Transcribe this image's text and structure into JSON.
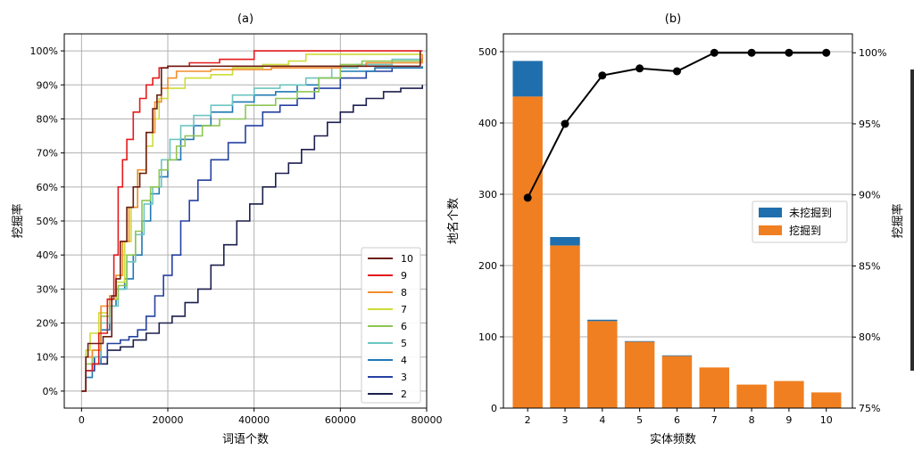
{
  "chart_data": [
    {
      "type": "line",
      "title": "(a)",
      "xlabel": "词语个数",
      "ylabel": "挖掘率",
      "xlim": [
        -4000,
        80000
      ],
      "ylim": [
        -0.05,
        1.05
      ],
      "xticks": [
        0,
        20000,
        40000,
        60000,
        80000
      ],
      "xtick_labels": [
        "0",
        "20000",
        "40000",
        "60000",
        "80000"
      ],
      "yticks": [
        0,
        0.1,
        0.2,
        0.3,
        0.4,
        0.5,
        0.6,
        0.7,
        0.8,
        0.9,
        1.0
      ],
      "ytick_labels": [
        "0%",
        "10%",
        "20%",
        "30%",
        "40%",
        "50%",
        "60%",
        "70%",
        "80%",
        "90%",
        "100%"
      ],
      "grid": true,
      "legend_position": "lower-right",
      "series": [
        {
          "name": "10",
          "color": "#6b1d14",
          "x": [
            0,
            1000,
            1500,
            3000,
            5000,
            7000,
            8000,
            9000,
            10500,
            12000,
            13500,
            15000,
            16500,
            17500,
            18500,
            20000,
            40000,
            60000,
            78000,
            78500
          ],
          "y": [
            0,
            0.1,
            0.14,
            0.14,
            0.16,
            0.28,
            0.33,
            0.44,
            0.54,
            0.6,
            0.64,
            0.76,
            0.83,
            0.87,
            0.95,
            0.955,
            0.955,
            0.955,
            0.955,
            1.0
          ]
        },
        {
          "name": "9",
          "color": "#e41a1c",
          "x": [
            0,
            1000,
            2500,
            4000,
            6000,
            7500,
            8500,
            9500,
            10500,
            12000,
            13500,
            15000,
            16500,
            18000,
            20000,
            25000,
            32000,
            40000,
            60000,
            79000
          ],
          "y": [
            0,
            0.06,
            0.08,
            0.17,
            0.27,
            0.4,
            0.6,
            0.68,
            0.74,
            0.82,
            0.86,
            0.9,
            0.92,
            0.95,
            0.955,
            0.965,
            0.975,
            1.0,
            1.0,
            1.0
          ]
        },
        {
          "name": "8",
          "color": "#f28e2b",
          "x": [
            0,
            1000,
            2500,
            4500,
            6500,
            8000,
            9500,
            11000,
            13000,
            15000,
            17000,
            18500,
            20000,
            22000,
            30000,
            44000,
            60000,
            66000,
            79000
          ],
          "y": [
            0,
            0.1,
            0.12,
            0.25,
            0.28,
            0.34,
            0.44,
            0.54,
            0.65,
            0.76,
            0.85,
            0.89,
            0.92,
            0.94,
            0.945,
            0.95,
            0.955,
            0.965,
            0.99
          ]
        },
        {
          "name": "7",
          "color": "#cddc39",
          "x": [
            0,
            1000,
            2000,
            4000,
            6000,
            8000,
            10000,
            11500,
            13000,
            15000,
            16500,
            18000,
            20000,
            24000,
            30000,
            35000,
            42000,
            48000,
            52000,
            60000,
            79000
          ],
          "y": [
            0,
            0.12,
            0.17,
            0.23,
            0.27,
            0.32,
            0.44,
            0.54,
            0.64,
            0.72,
            0.8,
            0.86,
            0.89,
            0.92,
            0.93,
            0.95,
            0.96,
            0.97,
            0.99,
            0.99,
            0.99
          ]
        },
        {
          "name": "6",
          "color": "#8dc653",
          "x": [
            0,
            1000,
            2500,
            4500,
            6500,
            8500,
            10500,
            12500,
            14000,
            16000,
            18000,
            20000,
            22000,
            24000,
            28000,
            32000,
            38000,
            45000,
            50000,
            55000,
            60000,
            65000,
            79000
          ],
          "y": [
            0,
            0.08,
            0.12,
            0.22,
            0.27,
            0.31,
            0.4,
            0.47,
            0.56,
            0.6,
            0.65,
            0.68,
            0.72,
            0.75,
            0.78,
            0.8,
            0.84,
            0.86,
            0.88,
            0.92,
            0.96,
            0.97,
            0.98
          ]
        },
        {
          "name": "5",
          "color": "#6cc5c1",
          "x": [
            0,
            1000,
            2500,
            4500,
            6500,
            8500,
            10500,
            12500,
            14500,
            16500,
            18500,
            20500,
            23000,
            26000,
            30000,
            35000,
            40000,
            46000,
            52000,
            58000,
            64000,
            72000,
            79000
          ],
          "y": [
            0,
            0.06,
            0.1,
            0.2,
            0.25,
            0.3,
            0.38,
            0.46,
            0.55,
            0.6,
            0.68,
            0.74,
            0.78,
            0.81,
            0.84,
            0.87,
            0.89,
            0.9,
            0.92,
            0.95,
            0.96,
            0.975,
            0.98
          ]
        },
        {
          "name": "4",
          "color": "#1f78b4",
          "x": [
            0,
            1000,
            2500,
            4500,
            6500,
            8000,
            10000,
            12000,
            14000,
            16000,
            18000,
            20000,
            23000,
            26000,
            30000,
            35000,
            40000,
            45000,
            50000,
            55000,
            60000,
            68000,
            79000
          ],
          "y": [
            0,
            0.04,
            0.08,
            0.18,
            0.25,
            0.3,
            0.33,
            0.4,
            0.5,
            0.58,
            0.63,
            0.68,
            0.74,
            0.78,
            0.82,
            0.85,
            0.87,
            0.88,
            0.9,
            0.92,
            0.94,
            0.95,
            0.955
          ]
        },
        {
          "name": "3",
          "color": "#2541a0",
          "x": [
            0,
            1000,
            3000,
            6000,
            9000,
            11000,
            13000,
            15000,
            17000,
            19000,
            21000,
            23000,
            25000,
            27000,
            30000,
            34000,
            38000,
            42000,
            46000,
            50000,
            54000,
            60000,
            66000,
            72000,
            79000
          ],
          "y": [
            0,
            0.06,
            0.1,
            0.14,
            0.15,
            0.16,
            0.18,
            0.22,
            0.28,
            0.34,
            0.4,
            0.5,
            0.56,
            0.62,
            0.68,
            0.73,
            0.78,
            0.82,
            0.84,
            0.86,
            0.89,
            0.92,
            0.94,
            0.95,
            0.955
          ]
        },
        {
          "name": "2",
          "color": "#1c1f4d",
          "x": [
            0,
            1000,
            3000,
            6000,
            9000,
            12000,
            15000,
            18000,
            21000,
            24000,
            27000,
            30000,
            33000,
            36000,
            39000,
            42000,
            45000,
            48000,
            51000,
            54000,
            57000,
            60000,
            63000,
            66000,
            70000,
            74000,
            79000
          ],
          "y": [
            0,
            0.06,
            0.08,
            0.12,
            0.13,
            0.15,
            0.17,
            0.2,
            0.22,
            0.26,
            0.3,
            0.37,
            0.43,
            0.5,
            0.55,
            0.6,
            0.64,
            0.67,
            0.71,
            0.75,
            0.79,
            0.82,
            0.84,
            0.86,
            0.88,
            0.89,
            0.9
          ]
        }
      ]
    },
    {
      "type": "bar",
      "title": "(b)",
      "xlabel": "实体频数",
      "ylabel": "地名个数",
      "y2label": "挖掘率",
      "stacked": true,
      "categories": [
        "2",
        "3",
        "4",
        "5",
        "6",
        "7",
        "8",
        "9",
        "10"
      ],
      "ylim": [
        0,
        525
      ],
      "yticks": [
        0,
        100,
        200,
        300,
        400,
        500
      ],
      "ytick_labels": [
        "0",
        "100",
        "200",
        "300",
        "400",
        "500"
      ],
      "y2lim": [
        0.75,
        1.0133
      ],
      "y2ticks": [
        0.75,
        0.8,
        0.85,
        0.9,
        0.95,
        1.0
      ],
      "y2tick_labels": [
        "75%",
        "80%",
        "85%",
        "90%",
        "95%",
        "100%"
      ],
      "grid": true,
      "legend_position": "center-right",
      "series": [
        {
          "name": "挖掘到",
          "color": "#f07f21",
          "values": [
            437,
            228,
            122,
            93,
            73,
            57,
            33,
            38,
            22
          ]
        },
        {
          "name": "未挖掘到",
          "color": "#1f6fae",
          "values": [
            50,
            12,
            2,
            1,
            1,
            0,
            0,
            0,
            0
          ]
        }
      ],
      "line": {
        "axis": "right",
        "color": "#000000",
        "values": [
          0.898,
          0.95,
          0.984,
          0.989,
          0.987,
          1.0,
          1.0,
          1.0,
          1.0
        ]
      }
    }
  ]
}
